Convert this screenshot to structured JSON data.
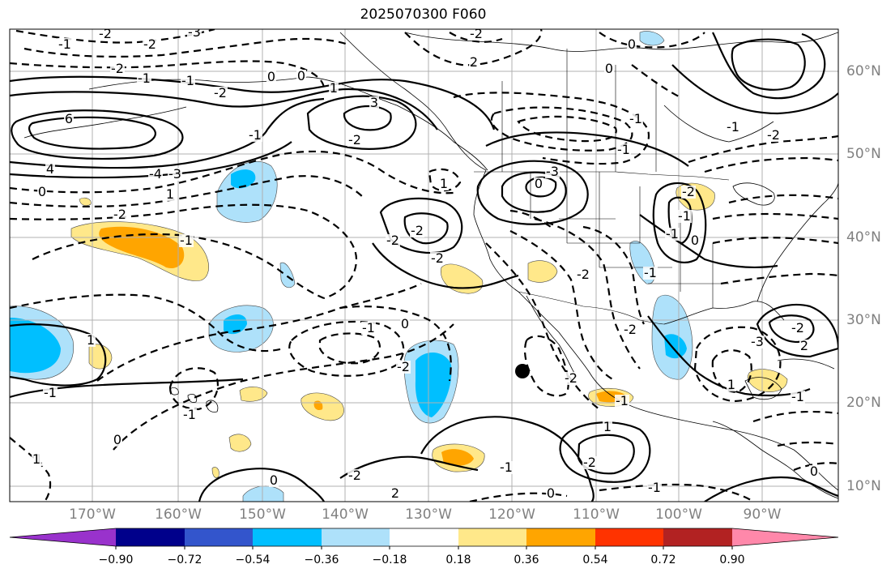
{
  "title": "2025070300 F060",
  "lon_labels": [
    "170°W",
    "160°W",
    "150°W",
    "140°W",
    "130°W",
    "120°W",
    "110°W",
    "100°W",
    "90°W"
  ],
  "lat_labels": [
    "60°N",
    "50°N",
    "40°N",
    "30°N",
    "20°N",
    "10°N"
  ],
  "colorbar": {
    "ticks": [
      "−0.90",
      "−0.72",
      "−0.54",
      "−0.36",
      "−0.18",
      "0.18",
      "0.36",
      "0.54",
      "0.72",
      "0.90"
    ],
    "colors": [
      "#9932cc",
      "#00008b",
      "#3355cc",
      "#00bfff",
      "#aee1fa",
      "#ffffff",
      "#ffe88a",
      "#ffa500",
      "#ff3300",
      "#b22222",
      "#ff88aa"
    ]
  },
  "contour_labels": [
    "-2",
    "-3",
    "-1",
    "-2",
    "-2",
    "-1",
    "0",
    "1",
    "-1",
    "6",
    "3",
    "-2",
    "-1",
    "-2",
    "4",
    "-4",
    "0",
    "1",
    "-3",
    "-2",
    "-1",
    "0",
    "-2",
    "2",
    "1",
    "-2",
    "-3",
    "0",
    "-2",
    "-2",
    "-1",
    "0",
    "-2",
    "-1",
    "0",
    "1",
    "-1",
    "1",
    "-2",
    "-2",
    "-2",
    "-1",
    "-1",
    "-1",
    "0",
    "-1",
    "-2",
    "1",
    "-1",
    "-2",
    "-3",
    "-2",
    "2",
    "-1",
    "0",
    "-1",
    "1",
    "-2",
    "-1",
    "-2",
    "0",
    "1",
    "2",
    "0",
    "0",
    "0",
    "-1",
    "-1"
  ],
  "marker": {
    "type": "dot",
    "color": "#000000"
  }
}
